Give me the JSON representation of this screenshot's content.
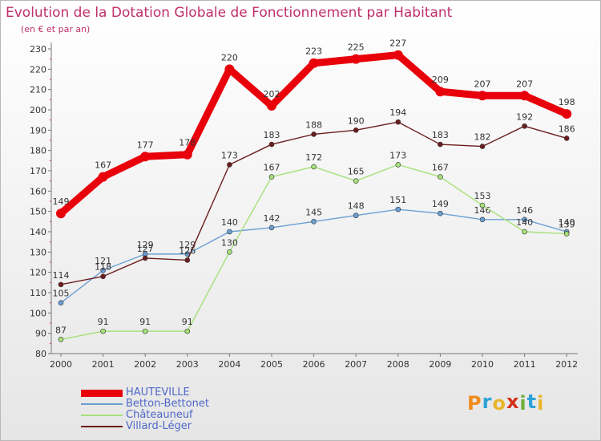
{
  "chart_data": {
    "type": "line",
    "title": "Evolution de la Dotation Globale de Fonctionnement par Habitant",
    "subtitle": "(en € et par an)",
    "xlabel": "",
    "ylabel": "",
    "x": [
      "2000",
      "2001",
      "2002",
      "2003",
      "2004",
      "2005",
      "2006",
      "2007",
      "2008",
      "2009",
      "2010",
      "2011",
      "2012"
    ],
    "ylim": [
      80,
      230
    ],
    "ytick_step": 10,
    "grid": false,
    "series": [
      {
        "name": "HAUTEVILLE",
        "color": "#e8000b",
        "emphasis": true,
        "values": [
          149,
          167,
          177,
          178,
          220,
          202,
          223,
          225,
          227,
          209,
          207,
          207,
          198
        ]
      },
      {
        "name": "Betton-Bettonet",
        "color": "#6a9fd4",
        "emphasis": false,
        "values": [
          105,
          121,
          129,
          129,
          140,
          142,
          145,
          148,
          151,
          149,
          146,
          146,
          140
        ]
      },
      {
        "name": "Châteauneuf",
        "color": "#a6e07a",
        "emphasis": false,
        "values": [
          87,
          91,
          91,
          91,
          130,
          167,
          172,
          165,
          173,
          167,
          153,
          140,
          139
        ]
      },
      {
        "name": "Villard-Léger",
        "color": "#6b1d1d",
        "emphasis": false,
        "values": [
          114,
          118,
          127,
          126,
          173,
          183,
          188,
          190,
          194,
          183,
          182,
          192,
          186
        ]
      }
    ]
  },
  "brand": {
    "letters": [
      "P",
      "r",
      "o",
      "x",
      "i",
      "t",
      "i"
    ],
    "colors": [
      "#f08c1e",
      "#2ea3d8",
      "#e8b52a",
      "#d4311c",
      "#6fae3c",
      "#2ea3d8",
      "#e8b52a"
    ]
  }
}
